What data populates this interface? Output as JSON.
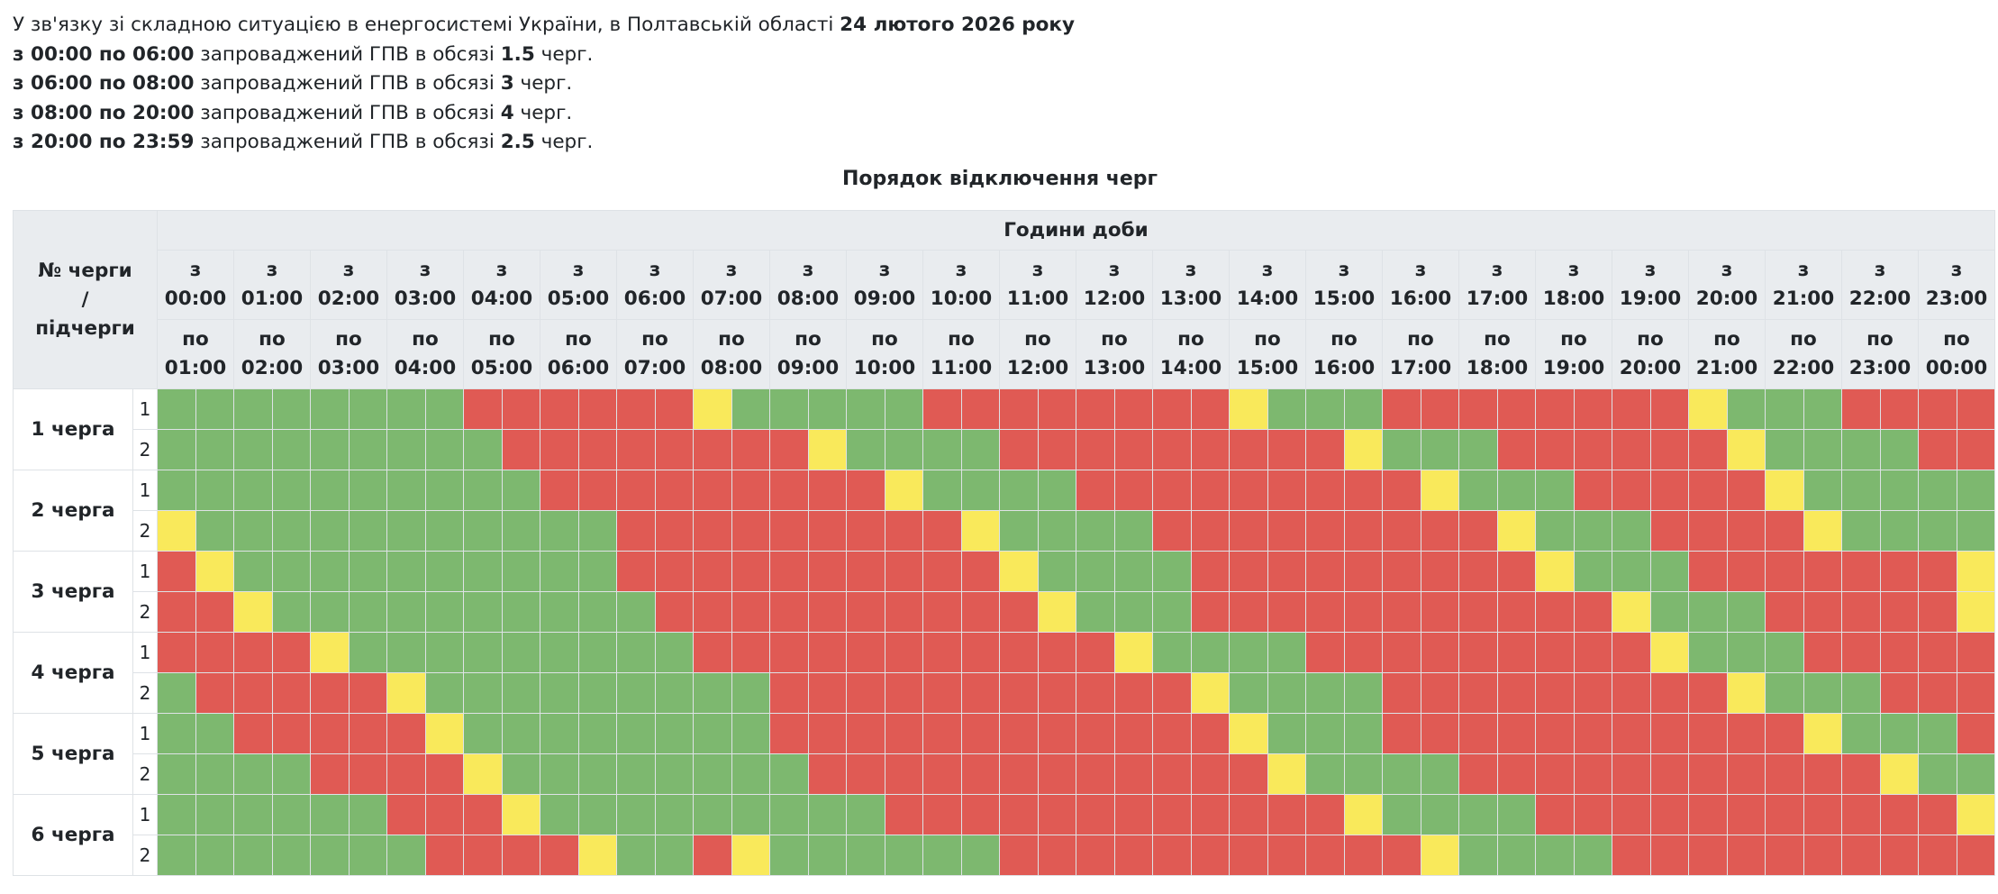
{
  "notice": {
    "line1_prefix": "У зв'язку зі складною ситуацією в енергосистемі України, в Полтавській області ",
    "line1_date": "24 лютого 2026 року",
    "periods": [
      {
        "range": "з 00:00 по 06:00",
        "mid": " запроваджений ГПВ в обсязі ",
        "amount": "1.5",
        "suffix": " черг."
      },
      {
        "range": "з 06:00 по 08:00",
        "mid": " запроваджений ГПВ в обсязі ",
        "amount": "3",
        "suffix": " черг."
      },
      {
        "range": "з 08:00 по 20:00",
        "mid": " запроваджений ГПВ в обсязі ",
        "amount": "4",
        "suffix": " черг."
      },
      {
        "range": "з 20:00 по 23:59",
        "mid": " запроваджений ГПВ в обсязі ",
        "amount": "2.5",
        "suffix": " черг."
      }
    ]
  },
  "caption": "Порядок відключення черг",
  "table": {
    "corner_label": [
      "№ черги",
      "/",
      "підчерги"
    ],
    "hours_label": "Години доби",
    "from_word": "з",
    "to_word": "по",
    "hours_from": [
      "00:00",
      "01:00",
      "02:00",
      "03:00",
      "04:00",
      "05:00",
      "06:00",
      "07:00",
      "08:00",
      "09:00",
      "10:00",
      "11:00",
      "12:00",
      "13:00",
      "14:00",
      "15:00",
      "16:00",
      "17:00",
      "18:00",
      "19:00",
      "20:00",
      "21:00",
      "22:00",
      "23:00"
    ],
    "hours_to": [
      "01:00",
      "02:00",
      "03:00",
      "04:00",
      "05:00",
      "06:00",
      "07:00",
      "08:00",
      "09:00",
      "10:00",
      "11:00",
      "12:00",
      "13:00",
      "14:00",
      "15:00",
      "16:00",
      "17:00",
      "18:00",
      "19:00",
      "20:00",
      "21:00",
      "22:00",
      "23:00",
      "00:00"
    ],
    "legend_colors": {
      "power_on": "#7db86f",
      "power_off": "#e05a54",
      "possible_off": "#f9e95b"
    },
    "state_key": {
      "G": "power on",
      "R": "power off",
      "Y": "possible off"
    },
    "queues": [
      {
        "label": "1 черга",
        "subs": [
          {
            "label": "1",
            "slots": "GGGGGGGGRRRRRRYGGGGGRRRRRRRRYGGGRRRRRRRRYGGGRRRR"
          },
          {
            "label": "2",
            "slots": "GGGGGGGGGRRRRRRRRYGGGGRRRRRRRRRYGGGRRRRRRYGGGGRR"
          }
        ]
      },
      {
        "label": "2 черга",
        "subs": [
          {
            "label": "1",
            "slots": "GGGGGGGGGGRRRRRRRRRYGGGGRRRRRRRRRYGGGRRRRRYGGGGG"
          },
          {
            "label": "2",
            "slots": "YGGGGGGGGGGGRRRRRRRRRYGGGGRRRRRRRRRYGGGRRRRYGGGG"
          }
        ]
      },
      {
        "label": "3 черга",
        "subs": [
          {
            "label": "1",
            "slots": "RYGGGGGGGGGGRRRRRRRRRRYGGGGRRRRRRRRRYGGGRRRRRRRY"
          },
          {
            "label": "2",
            "slots": "RRYGGGGGGGGGGRRRRRRRRRRYGGGRRRRRRRRRRRYGGGRRRRRY"
          }
        ]
      },
      {
        "label": "4 черга",
        "subs": [
          {
            "label": "1",
            "slots": "RRRRYGGGGGGGGGRRRRRRRRRRRYGGGGRRRRRRRRRYGGGRRRRR"
          },
          {
            "label": "2",
            "slots": "GRRRRRYGGGGGGGGGRRRRRRRRRRRYGGGGRRRRRRRRRYGGGRRR"
          }
        ]
      },
      {
        "label": "5 черга",
        "subs": [
          {
            "label": "1",
            "slots": "GGRRRRRYGGGGGGGGRRRRRRRRRRRRYGGGRRRRRRRRRRRYGGGR"
          },
          {
            "label": "2",
            "slots": "GGGGRRRRYGGGGGGGGRRRRRRRRRRRRYGGGGRRRRRRRRRRRYGG"
          }
        ]
      },
      {
        "label": "6 черга",
        "subs": [
          {
            "label": "1",
            "slots": "GGGGGGRRRYGGGGGGGGGRRRRRRRRRRRRYGGGGRRRRRRRRRRRY"
          },
          {
            "label": "2",
            "slots": "GGGGGGGRRRRYGGRYGGGGGGRRRRRRRRRRRYGGGGRRRRRRRRRR"
          }
        ]
      }
    ]
  }
}
